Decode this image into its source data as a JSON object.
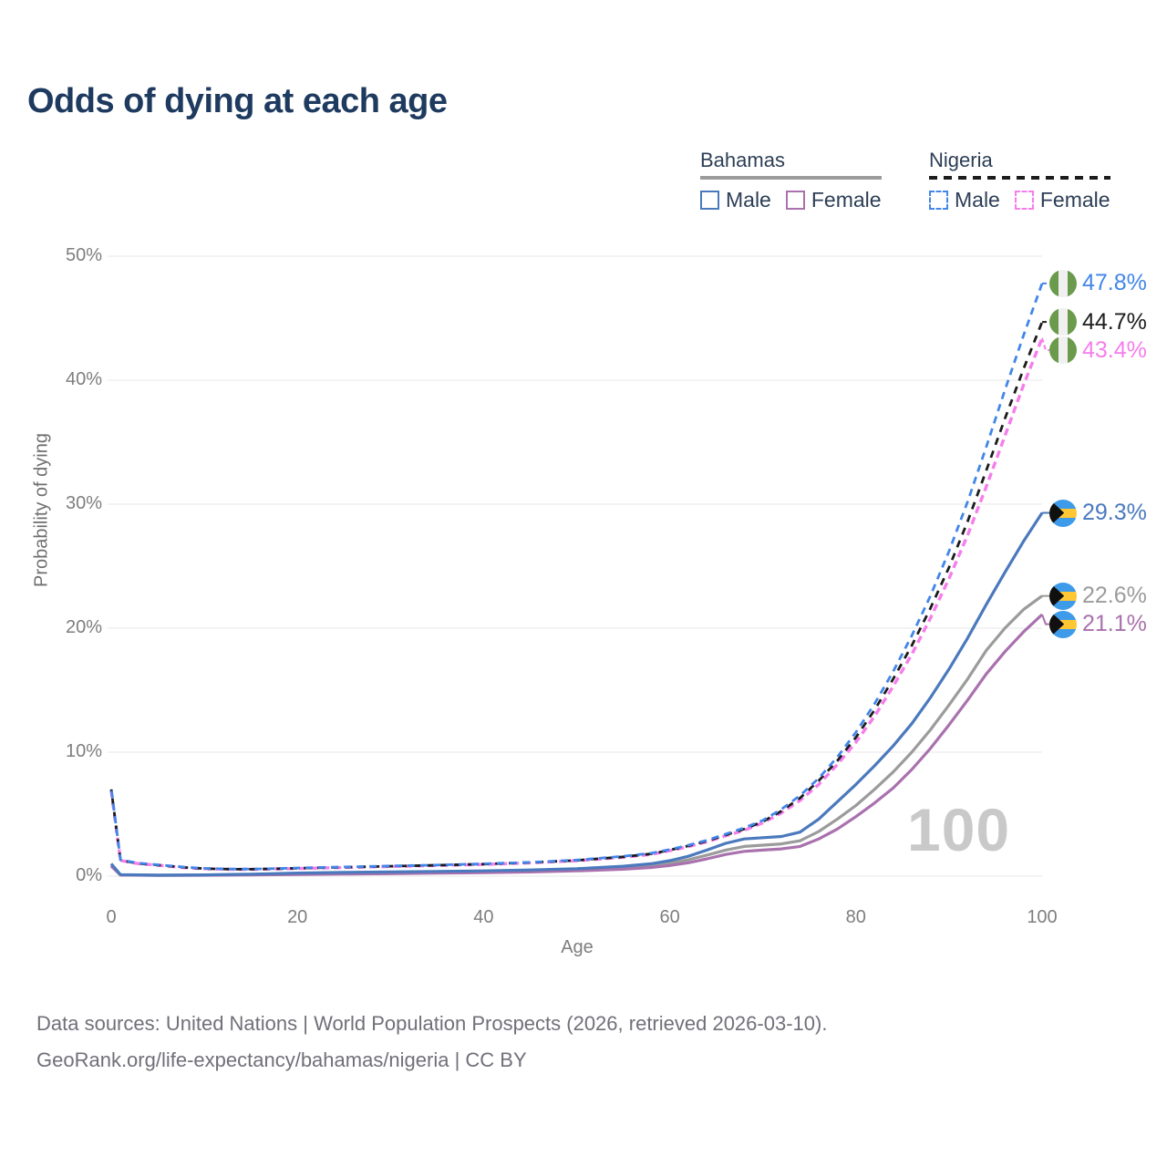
{
  "title": "Odds of dying at each age",
  "watermark": "100",
  "legend": {
    "groups": [
      {
        "label": "Bahamas",
        "line_style": "solid",
        "underline_color": "#9B9B9B",
        "items": [
          {
            "label": "Male",
            "color": "#4A79BD"
          },
          {
            "label": "Female",
            "color": "#A971AE"
          }
        ]
      },
      {
        "label": "Nigeria",
        "line_style": "dashed",
        "underline_color": "#1C1C1C",
        "items": [
          {
            "label": "Male",
            "color": "#4286E9"
          },
          {
            "label": "Female",
            "color": "#F57DEC"
          }
        ]
      }
    ]
  },
  "footer": {
    "line1": "Data sources: United Nations | World Population Prospects (2026, retrieved 2026-03-10).",
    "line2": "GeoRank.org/life-expectancy/bahamas/nigeria | CC BY"
  },
  "chart_data": {
    "type": "line",
    "title": "Odds of dying at each age",
    "xlabel": "Age",
    "ylabel": "Probability of dying",
    "xlim": [
      0,
      100
    ],
    "ylim": [
      0,
      50
    ],
    "x_ticks": [
      0,
      20,
      40,
      60,
      80,
      100
    ],
    "y_tick_labels": [
      "0%",
      "10%",
      "20%",
      "30%",
      "40%",
      "50%"
    ],
    "grid": "horizontal",
    "legend_position": "top-right",
    "series": [
      {
        "name": "Bahamas Male",
        "country": "Bahamas",
        "style": "solid",
        "color": "#4A79BD",
        "flag": "bahamas",
        "end_label": "29.3%",
        "end_value": 29.3,
        "points": [
          [
            0,
            1.0
          ],
          [
            1,
            0.12
          ],
          [
            5,
            0.08
          ],
          [
            10,
            0.1
          ],
          [
            15,
            0.16
          ],
          [
            20,
            0.25
          ],
          [
            25,
            0.3
          ],
          [
            30,
            0.34
          ],
          [
            35,
            0.38
          ],
          [
            40,
            0.43
          ],
          [
            45,
            0.5
          ],
          [
            50,
            0.6
          ],
          [
            55,
            0.8
          ],
          [
            58,
            1.0
          ],
          [
            60,
            1.25
          ],
          [
            62,
            1.6
          ],
          [
            64,
            2.1
          ],
          [
            66,
            2.65
          ],
          [
            68,
            3.0
          ],
          [
            70,
            3.1
          ],
          [
            72,
            3.2
          ],
          [
            74,
            3.55
          ],
          [
            76,
            4.6
          ],
          [
            78,
            6.0
          ],
          [
            80,
            7.4
          ],
          [
            82,
            8.9
          ],
          [
            84,
            10.5
          ],
          [
            86,
            12.3
          ],
          [
            88,
            14.4
          ],
          [
            90,
            16.7
          ],
          [
            92,
            19.2
          ],
          [
            94,
            21.9
          ],
          [
            96,
            24.5
          ],
          [
            98,
            27.0
          ],
          [
            100,
            29.3
          ]
        ]
      },
      {
        "name": "Bahamas Female",
        "country": "Bahamas",
        "style": "solid",
        "color": "#A971AE",
        "flag": "bahamas",
        "end_label": "21.1%",
        "end_value": 21.1,
        "points": [
          [
            0,
            0.8
          ],
          [
            1,
            0.09
          ],
          [
            5,
            0.06
          ],
          [
            10,
            0.07
          ],
          [
            15,
            0.1
          ],
          [
            20,
            0.14
          ],
          [
            25,
            0.17
          ],
          [
            30,
            0.2
          ],
          [
            35,
            0.24
          ],
          [
            40,
            0.28
          ],
          [
            45,
            0.34
          ],
          [
            50,
            0.43
          ],
          [
            55,
            0.56
          ],
          [
            58,
            0.7
          ],
          [
            60,
            0.86
          ],
          [
            62,
            1.08
          ],
          [
            64,
            1.4
          ],
          [
            66,
            1.75
          ],
          [
            68,
            2.0
          ],
          [
            70,
            2.1
          ],
          [
            72,
            2.2
          ],
          [
            74,
            2.4
          ],
          [
            76,
            3.0
          ],
          [
            78,
            3.8
          ],
          [
            80,
            4.8
          ],
          [
            82,
            5.9
          ],
          [
            84,
            7.1
          ],
          [
            86,
            8.6
          ],
          [
            88,
            10.3
          ],
          [
            90,
            12.2
          ],
          [
            92,
            14.2
          ],
          [
            94,
            16.3
          ],
          [
            96,
            18.1
          ],
          [
            98,
            19.7
          ],
          [
            100,
            21.1
          ]
        ]
      },
      {
        "name": "Bahamas",
        "country": "Bahamas",
        "style": "solid",
        "color": "#9B9B9B",
        "flag": "bahamas",
        "end_label": "22.6%",
        "end_value": 22.6,
        "points": [
          [
            0,
            0.9
          ],
          [
            1,
            0.1
          ],
          [
            5,
            0.07
          ],
          [
            10,
            0.08
          ],
          [
            15,
            0.13
          ],
          [
            20,
            0.19
          ],
          [
            25,
            0.23
          ],
          [
            30,
            0.26
          ],
          [
            35,
            0.3
          ],
          [
            40,
            0.35
          ],
          [
            45,
            0.42
          ],
          [
            50,
            0.52
          ],
          [
            55,
            0.68
          ],
          [
            58,
            0.85
          ],
          [
            60,
            1.05
          ],
          [
            62,
            1.32
          ],
          [
            64,
            1.7
          ],
          [
            66,
            2.1
          ],
          [
            68,
            2.4
          ],
          [
            70,
            2.5
          ],
          [
            72,
            2.6
          ],
          [
            74,
            2.85
          ],
          [
            76,
            3.6
          ],
          [
            78,
            4.6
          ],
          [
            80,
            5.7
          ],
          [
            82,
            7.0
          ],
          [
            84,
            8.4
          ],
          [
            86,
            10.0
          ],
          [
            88,
            11.8
          ],
          [
            90,
            13.8
          ],
          [
            92,
            15.9
          ],
          [
            94,
            18.2
          ],
          [
            96,
            20.0
          ],
          [
            98,
            21.5
          ],
          [
            100,
            22.6
          ]
        ]
      },
      {
        "name": "Nigeria Male",
        "country": "Nigeria",
        "style": "dashed",
        "color": "#4286E9",
        "flag": "nigeria",
        "end_label": "47.8%",
        "end_value": 47.8,
        "points": [
          [
            0,
            7.1
          ],
          [
            1,
            1.3
          ],
          [
            3,
            1.05
          ],
          [
            5,
            0.92
          ],
          [
            8,
            0.72
          ],
          [
            10,
            0.63
          ],
          [
            13,
            0.57
          ],
          [
            15,
            0.57
          ],
          [
            18,
            0.62
          ],
          [
            20,
            0.66
          ],
          [
            25,
            0.74
          ],
          [
            30,
            0.82
          ],
          [
            35,
            0.9
          ],
          [
            40,
            1.0
          ],
          [
            45,
            1.12
          ],
          [
            50,
            1.3
          ],
          [
            55,
            1.6
          ],
          [
            58,
            1.85
          ],
          [
            60,
            2.15
          ],
          [
            62,
            2.5
          ],
          [
            64,
            2.9
          ],
          [
            66,
            3.4
          ],
          [
            68,
            3.9
          ],
          [
            70,
            4.5
          ],
          [
            72,
            5.4
          ],
          [
            74,
            6.5
          ],
          [
            76,
            7.9
          ],
          [
            78,
            9.6
          ],
          [
            80,
            11.6
          ],
          [
            82,
            13.9
          ],
          [
            84,
            16.5
          ],
          [
            86,
            19.4
          ],
          [
            88,
            22.6
          ],
          [
            90,
            26.2
          ],
          [
            92,
            30.2
          ],
          [
            94,
            34.6
          ],
          [
            96,
            39.2
          ],
          [
            98,
            43.6
          ],
          [
            100,
            47.8
          ]
        ]
      },
      {
        "name": "Nigeria Female",
        "country": "Nigeria",
        "style": "dashed",
        "color": "#F57DEC",
        "flag": "nigeria",
        "end_label": "43.4%",
        "end_value": 43.4,
        "points": [
          [
            0,
            6.9
          ],
          [
            1,
            1.26
          ],
          [
            3,
            1.0
          ],
          [
            5,
            0.88
          ],
          [
            8,
            0.68
          ],
          [
            10,
            0.6
          ],
          [
            13,
            0.55
          ],
          [
            15,
            0.55
          ],
          [
            18,
            0.59
          ],
          [
            20,
            0.62
          ],
          [
            25,
            0.7
          ],
          [
            30,
            0.78
          ],
          [
            35,
            0.86
          ],
          [
            40,
            0.95
          ],
          [
            45,
            1.07
          ],
          [
            50,
            1.24
          ],
          [
            55,
            1.52
          ],
          [
            58,
            1.76
          ],
          [
            60,
            2.05
          ],
          [
            62,
            2.38
          ],
          [
            64,
            2.77
          ],
          [
            66,
            3.25
          ],
          [
            68,
            3.7
          ],
          [
            70,
            4.3
          ],
          [
            72,
            5.1
          ],
          [
            74,
            6.1
          ],
          [
            76,
            7.4
          ],
          [
            78,
            9.0
          ],
          [
            80,
            10.8
          ],
          [
            82,
            12.9
          ],
          [
            84,
            15.3
          ],
          [
            86,
            17.9
          ],
          [
            88,
            20.8
          ],
          [
            90,
            24.0
          ],
          [
            92,
            27.5
          ],
          [
            94,
            31.4
          ],
          [
            96,
            35.5
          ],
          [
            98,
            39.6
          ],
          [
            100,
            43.4
          ]
        ]
      },
      {
        "name": "Nigeria",
        "country": "Nigeria",
        "style": "dashed",
        "color": "#1C1C1C",
        "flag": "nigeria",
        "end_label": "44.7%",
        "end_value": 44.7,
        "points": [
          [
            0,
            7.0
          ],
          [
            1,
            1.28
          ],
          [
            3,
            1.02
          ],
          [
            5,
            0.9
          ],
          [
            8,
            0.7
          ],
          [
            10,
            0.61
          ],
          [
            13,
            0.56
          ],
          [
            15,
            0.56
          ],
          [
            18,
            0.6
          ],
          [
            20,
            0.64
          ],
          [
            25,
            0.72
          ],
          [
            30,
            0.8
          ],
          [
            35,
            0.88
          ],
          [
            40,
            0.97
          ],
          [
            45,
            1.1
          ],
          [
            50,
            1.27
          ],
          [
            55,
            1.56
          ],
          [
            58,
            1.8
          ],
          [
            60,
            2.1
          ],
          [
            62,
            2.44
          ],
          [
            64,
            2.84
          ],
          [
            66,
            3.32
          ],
          [
            68,
            3.8
          ],
          [
            70,
            4.4
          ],
          [
            72,
            5.25
          ],
          [
            74,
            6.3
          ],
          [
            76,
            7.7
          ],
          [
            78,
            9.3
          ],
          [
            80,
            11.2
          ],
          [
            82,
            13.4
          ],
          [
            84,
            15.9
          ],
          [
            86,
            18.6
          ],
          [
            88,
            21.6
          ],
          [
            90,
            24.9
          ],
          [
            92,
            28.6
          ],
          [
            94,
            32.7
          ],
          [
            96,
            36.9
          ],
          [
            98,
            40.9
          ],
          [
            100,
            44.7
          ]
        ]
      }
    ]
  }
}
